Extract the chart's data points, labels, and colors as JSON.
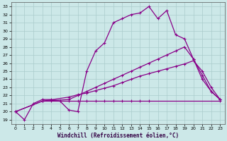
{
  "xlabel": "Windchill (Refroidissement éolien,°C)",
  "bg_color": "#cce8e8",
  "grid_color": "#aacccc",
  "line_color": "#880088",
  "xlim": [
    -0.5,
    23.5
  ],
  "ylim": [
    18.5,
    33.5
  ],
  "yticks": [
    19,
    20,
    21,
    22,
    23,
    24,
    25,
    26,
    27,
    28,
    29,
    30,
    31,
    32,
    33
  ],
  "xticks": [
    0,
    1,
    2,
    3,
    4,
    5,
    6,
    7,
    8,
    9,
    10,
    11,
    12,
    13,
    14,
    15,
    16,
    17,
    18,
    19,
    20,
    21,
    22,
    23
  ],
  "line1_x": [
    0,
    1,
    2,
    3,
    4,
    5,
    6,
    7,
    8,
    9,
    10,
    11,
    12,
    13,
    14,
    15,
    16,
    17,
    18,
    19,
    20,
    21,
    22,
    23
  ],
  "line1_y": [
    20.0,
    19.0,
    21.0,
    21.5,
    21.5,
    21.3,
    20.2,
    20.0,
    25.0,
    27.5,
    28.5,
    31.0,
    31.5,
    32.0,
    32.2,
    33.0,
    31.5,
    32.5,
    29.5,
    29.0,
    26.5,
    24.5,
    22.5,
    21.5
  ],
  "line2_x": [
    3,
    4,
    5,
    6,
    7,
    8,
    9,
    10,
    11,
    12,
    13,
    14,
    15,
    23
  ],
  "line2_y": [
    21.3,
    21.3,
    21.3,
    21.3,
    21.3,
    21.3,
    21.3,
    21.3,
    21.3,
    21.3,
    21.3,
    21.3,
    21.3,
    21.3
  ],
  "line3_x": [
    0,
    3,
    6,
    7,
    8,
    9,
    10,
    11,
    12,
    13,
    14,
    15,
    16,
    17,
    18,
    19,
    20,
    21,
    22,
    23
  ],
  "line3_y": [
    20.0,
    21.3,
    21.5,
    22.0,
    22.5,
    23.0,
    23.5,
    24.0,
    24.5,
    25.0,
    25.5,
    26.0,
    26.5,
    27.0,
    27.5,
    28.0,
    26.5,
    24.0,
    22.5,
    21.5
  ],
  "line4_x": [
    0,
    3,
    6,
    7,
    8,
    9,
    10,
    11,
    12,
    13,
    14,
    15,
    16,
    17,
    18,
    19,
    20,
    21,
    22,
    23
  ],
  "line4_y": [
    20.0,
    21.3,
    21.8,
    22.1,
    22.3,
    22.6,
    22.9,
    23.2,
    23.6,
    24.0,
    24.4,
    24.7,
    25.0,
    25.3,
    25.6,
    25.9,
    26.3,
    25.0,
    23.0,
    21.5
  ]
}
